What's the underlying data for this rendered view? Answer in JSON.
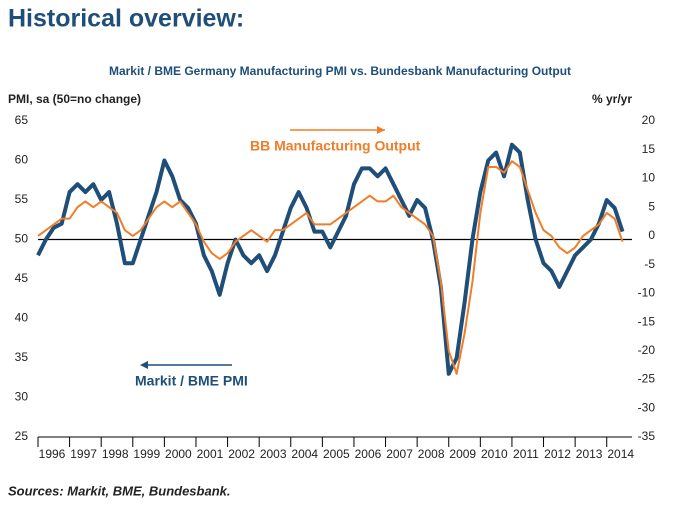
{
  "header": "Historical overview:",
  "footer": "Sources: Markit, BME, Bundesbank.",
  "chart_data": {
    "type": "line",
    "title": "Markit / BME Germany Manufacturing PMI vs. Bundesbank Manufacturing Output",
    "ylabel": "PMI, sa (50=no change)",
    "y2label": "% yr/yr",
    "annotations": [
      "BB Manufacturing Output",
      "Markit / BME PMI"
    ],
    "x": [
      1996,
      1996.25,
      1996.5,
      1996.75,
      1997,
      1997.25,
      1997.5,
      1997.75,
      1998,
      1998.25,
      1998.5,
      1998.75,
      1999,
      1999.25,
      1999.5,
      1999.75,
      2000,
      2000.25,
      2000.5,
      2000.75,
      2001,
      2001.25,
      2001.5,
      2001.75,
      2002,
      2002.25,
      2002.5,
      2002.75,
      2003,
      2003.25,
      2003.5,
      2003.75,
      2004,
      2004.25,
      2004.5,
      2004.75,
      2005,
      2005.25,
      2005.5,
      2005.75,
      2006,
      2006.25,
      2006.5,
      2006.75,
      2007,
      2007.25,
      2007.5,
      2007.75,
      2008,
      2008.25,
      2008.5,
      2008.75,
      2009,
      2009.25,
      2009.5,
      2009.75,
      2010,
      2010.25,
      2010.5,
      2010.75,
      2011,
      2011.25,
      2011.5,
      2011.75,
      2012,
      2012.25,
      2012.5,
      2012.75,
      2013,
      2013.25,
      2013.5,
      2013.75,
      2014,
      2014.25,
      2014.5
    ],
    "series": [
      {
        "name": "Markit / BME PMI",
        "color": "#1f4e79",
        "axis": "y",
        "values": [
          48,
          50,
          51.5,
          52,
          56,
          57,
          56,
          57,
          55,
          56,
          52,
          47,
          47,
          50,
          53,
          56,
          60,
          58,
          55,
          54,
          52,
          48,
          46,
          43,
          47,
          50,
          48,
          47,
          48,
          46,
          48,
          51,
          54,
          56,
          54,
          51,
          51,
          49,
          51,
          53,
          57,
          59,
          59,
          58,
          59,
          57,
          55,
          53,
          55,
          54,
          50,
          44,
          33,
          35,
          42,
          50,
          56,
          60,
          61,
          58,
          62,
          61,
          55,
          50,
          47,
          46,
          44,
          46,
          48,
          49,
          50,
          52,
          55,
          54,
          51
        ]
      },
      {
        "name": "BB Manufacturing Output",
        "color": "#f07d28",
        "axis": "y2",
        "values": [
          0,
          1,
          2,
          3,
          3,
          5,
          6,
          5,
          6,
          5,
          4,
          1,
          0,
          1,
          3,
          5,
          6,
          5,
          6,
          4,
          2,
          -1,
          -3,
          -4,
          -3,
          -1,
          0,
          1,
          0,
          -1,
          1,
          1,
          2,
          3,
          4,
          2,
          2,
          2,
          3,
          4,
          5,
          6,
          7,
          6,
          6,
          7,
          5,
          4,
          3,
          2,
          0,
          -8,
          -20,
          -24,
          -17,
          -8,
          4,
          12,
          12,
          11,
          13,
          12,
          8,
          4,
          1,
          0,
          -2,
          -3,
          -2,
          0,
          1,
          2,
          4,
          3,
          -1
        ]
      }
    ],
    "xlim": [
      1996,
      2014.8
    ],
    "xticks": [
      1996,
      1997,
      1998,
      1999,
      2000,
      2001,
      2002,
      2003,
      2004,
      2005,
      2006,
      2007,
      2008,
      2009,
      2010,
      2011,
      2012,
      2013,
      2014
    ],
    "ylim": [
      25,
      65
    ],
    "yticks": [
      65,
      60,
      55,
      50,
      45,
      40,
      35,
      30,
      25
    ],
    "y2lim": [
      -35,
      20
    ],
    "y2ticks": [
      20,
      15,
      10,
      5,
      0,
      -5,
      -10,
      -15,
      -20,
      -25,
      -30,
      -35
    ],
    "reference_line": 50
  }
}
